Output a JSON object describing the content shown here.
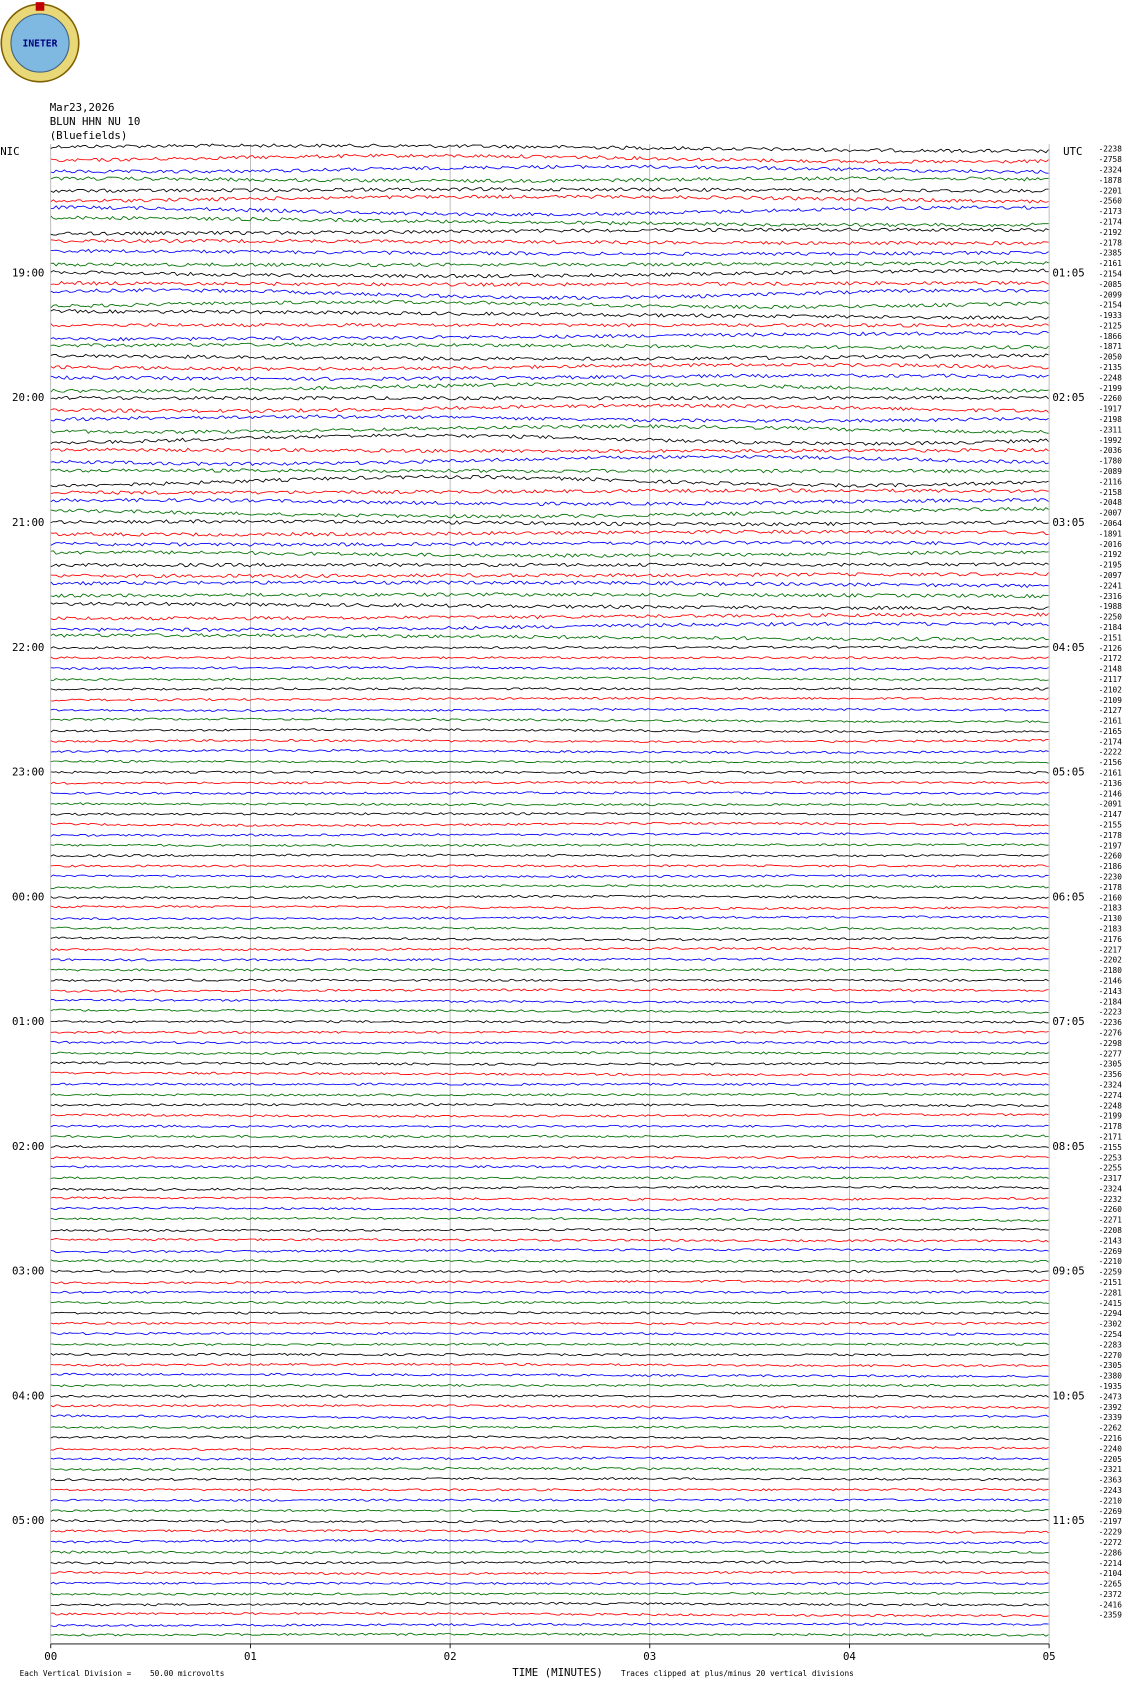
{
  "header": {
    "logo": "INETER",
    "date": "Mar23,2026",
    "station": "BLUN HHN NU 10",
    "place": "(Bluefields)",
    "left_zone": "NIC",
    "right_zone": "UTC"
  },
  "left_labels": [
    "19:00",
    "20:00",
    "21:00",
    "22:00",
    "23:00",
    "00:00",
    "01:00",
    "02:00",
    "03:00",
    "04:00",
    "05:00"
  ],
  "right_labels": [
    "01:05",
    "02:05",
    "03:05",
    "04:05",
    "05:05",
    "06:05",
    "07:05",
    "08:05",
    "09:05",
    "10:05",
    "11:05"
  ],
  "offsets": [
    "-2238",
    "-2758",
    "-2324",
    "-1878",
    "-2201",
    "-2560",
    "-2173",
    "-2174",
    "-2192",
    "-2178",
    "-2385",
    "-2161",
    "-2154",
    "-2085",
    "-2099",
    "-2154",
    "-1933",
    "-2125",
    "-1866",
    "-1871",
    "-2050",
    "-2135",
    "-2248",
    "-2199",
    "-2260",
    "-1917",
    "-2198",
    "-2311",
    "-1992",
    "-2036",
    "-1780",
    "-2089",
    "-2116",
    "-2158",
    "-2048",
    "-2007",
    "-2064",
    "-1891",
    "-2016",
    "-2192",
    "-2195",
    "-2097",
    "-2241",
    "-2316",
    "-1988",
    "-2250",
    "-2184",
    "-2151",
    "-2126",
    "-2172",
    "-2148",
    "-2117",
    "-2102",
    "-2109",
    "-2127",
    "-2161",
    "-2165",
    "-2174",
    "-2222",
    "-2156",
    "-2161",
    "-2136",
    "-2146",
    "-2091",
    "-2147",
    "-2155",
    "-2178",
    "-2197",
    "-2260",
    "-2186",
    "-2230",
    "-2178",
    "-2160",
    "-2183",
    "-2130",
    "-2183",
    "-2176",
    "-2217",
    "-2202",
    "-2180",
    "-2146",
    "-2143",
    "-2184",
    "-2223",
    "-2236",
    "-2276",
    "-2298",
    "-2277",
    "-2305",
    "-2356",
    "-2324",
    "-2274",
    "-2248",
    "-2199",
    "-2178",
    "-2171",
    "-2155",
    "-2253",
    "-2255",
    "-2317",
    "-2324",
    "-2232",
    "-2260",
    "-2271",
    "-2208",
    "-2143",
    "-2269",
    "-2210",
    "-2259",
    "-2151",
    "-2281",
    "-2415",
    "-2294",
    "-2302",
    "-2254",
    "-2283",
    "-2270",
    "-2305",
    "-2380",
    "-1935",
    "-2473",
    "-2392",
    "-2339",
    "-2262",
    "-2216",
    "-2240",
    "-2205",
    "-2321",
    "-2363",
    "-2243",
    "-2210",
    "-2269",
    "-2197",
    "-2229",
    "-2272",
    "-2286",
    "-2214",
    "-2104",
    "-2265",
    "-2372",
    "-2416",
    "-2359"
  ],
  "x_axis": {
    "title": "TIME (MINUTES)",
    "xlim": [
      0,
      5
    ],
    "xticks": [
      {
        "value": 0,
        "label": "00"
      },
      {
        "value": 1,
        "label": "01"
      },
      {
        "value": 2,
        "label": "02"
      },
      {
        "value": 3,
        "label": "03"
      },
      {
        "value": 4,
        "label": "04"
      },
      {
        "value": 5,
        "label": "05"
      }
    ]
  },
  "footer": {
    "scale": "Each Vertical Division =    50.00 microvolts",
    "clip": "Traces clipped at plus/minus 20 vertical divisions"
  },
  "trace_colors": [
    "#000000",
    "#ff0000",
    "#0000ff",
    "#007000"
  ]
}
